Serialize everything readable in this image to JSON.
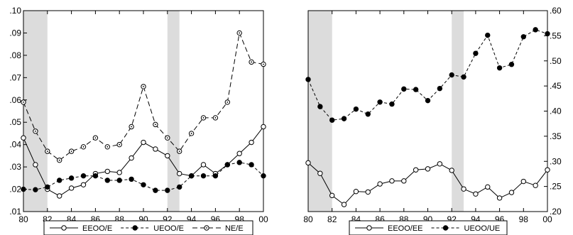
{
  "chart_data": [
    {
      "type": "line",
      "title": "",
      "xlabel": "",
      "ylabel": "",
      "xlim": [
        1980,
        2000
      ],
      "ylim": [
        0.01,
        0.1
      ],
      "y_axis_side": "left",
      "x_ticks": [
        1980,
        1982,
        1984,
        1986,
        1988,
        1990,
        1992,
        1994,
        1996,
        1998,
        2000
      ],
      "x_tick_labels": [
        "80",
        "82",
        "84",
        "86",
        "88",
        "90",
        "92",
        "94",
        "96",
        "98",
        "00"
      ],
      "y_ticks": [
        0.01,
        0.02,
        0.03,
        0.04,
        0.05,
        0.06,
        0.07,
        0.08,
        0.09,
        0.1
      ],
      "y_tick_labels": [
        ".01",
        ".02",
        ".03",
        ".04",
        ".05",
        ".06",
        ".07",
        ".08",
        ".09",
        ".10"
      ],
      "shaded_periods": [
        [
          1980,
          1982
        ],
        [
          1992,
          1993
        ]
      ],
      "grid": false,
      "legend_position": "bottom",
      "x": [
        1980,
        1981,
        1982,
        1983,
        1984,
        1985,
        1986,
        1987,
        1988,
        1989,
        1990,
        1991,
        1992,
        1993,
        1994,
        1995,
        1996,
        1997,
        1998,
        1999,
        2000
      ],
      "series": [
        {
          "name": "EEOO/E",
          "marker": "open",
          "dash": "solid",
          "values": [
            0.043,
            0.031,
            0.02,
            0.017,
            0.0205,
            0.022,
            0.027,
            0.028,
            0.0275,
            0.034,
            0.041,
            0.038,
            0.035,
            0.027,
            0.026,
            0.031,
            0.027,
            0.031,
            0.036,
            0.041,
            0.048
          ]
        },
        {
          "name": "UEOO/E",
          "marker": "filled",
          "dash": "dashed",
          "values": [
            0.02,
            0.0198,
            0.021,
            0.024,
            0.025,
            0.026,
            0.026,
            0.024,
            0.024,
            0.0245,
            0.022,
            0.0195,
            0.0195,
            0.021,
            0.026,
            0.026,
            0.026,
            0.031,
            0.032,
            0.031,
            0.026
          ]
        },
        {
          "name": "NE/E",
          "marker": "open",
          "dash": "longdash",
          "values": [
            0.059,
            0.046,
            0.037,
            0.033,
            0.037,
            0.039,
            0.043,
            0.039,
            0.04,
            0.048,
            0.066,
            0.049,
            0.043,
            0.037,
            0.045,
            0.052,
            0.052,
            0.059,
            0.09,
            0.077,
            0.076
          ]
        }
      ]
    },
    {
      "type": "line",
      "title": "",
      "xlabel": "",
      "ylabel": "",
      "xlim": [
        1980,
        2000
      ],
      "ylim": [
        0.2,
        0.6
      ],
      "y_axis_side": "right",
      "x_ticks": [
        1980,
        1982,
        1984,
        1986,
        1988,
        1990,
        1992,
        1994,
        1996,
        1998,
        2000
      ],
      "x_tick_labels": [
        "80",
        "82",
        "84",
        "86",
        "88",
        "90",
        "92",
        "94",
        "96",
        "98",
        "00"
      ],
      "y_ticks": [
        0.2,
        0.25,
        0.3,
        0.35,
        0.4,
        0.45,
        0.5,
        0.55,
        0.6
      ],
      "y_tick_labels": [
        ".20",
        ".25",
        ".30",
        ".35",
        ".40",
        ".45",
        ".50",
        ".55",
        ".60"
      ],
      "shaded_periods": [
        [
          1980,
          1982
        ],
        [
          1992,
          1993
        ]
      ],
      "grid": false,
      "legend_position": "bottom",
      "x": [
        1980,
        1981,
        1982,
        1983,
        1984,
        1985,
        1986,
        1987,
        1988,
        1989,
        1990,
        1991,
        1992,
        1993,
        1994,
        1995,
        1996,
        1997,
        1998,
        1999,
        2000
      ],
      "series": [
        {
          "name": "EEOO/EE",
          "marker": "open",
          "dash": "solid",
          "values": [
            0.297,
            0.276,
            0.232,
            0.214,
            0.24,
            0.239,
            0.255,
            0.261,
            0.261,
            0.283,
            0.285,
            0.295,
            0.282,
            0.245,
            0.235,
            0.249,
            0.227,
            0.238,
            0.26,
            0.252,
            0.283
          ]
        },
        {
          "name": "UEOO/UE",
          "marker": "filled",
          "dash": "dashed",
          "values": [
            0.463,
            0.409,
            0.382,
            0.385,
            0.404,
            0.394,
            0.418,
            0.414,
            0.444,
            0.443,
            0.421,
            0.445,
            0.472,
            0.468,
            0.515,
            0.551,
            0.486,
            0.493,
            0.548,
            0.562,
            0.554
          ]
        }
      ]
    }
  ]
}
